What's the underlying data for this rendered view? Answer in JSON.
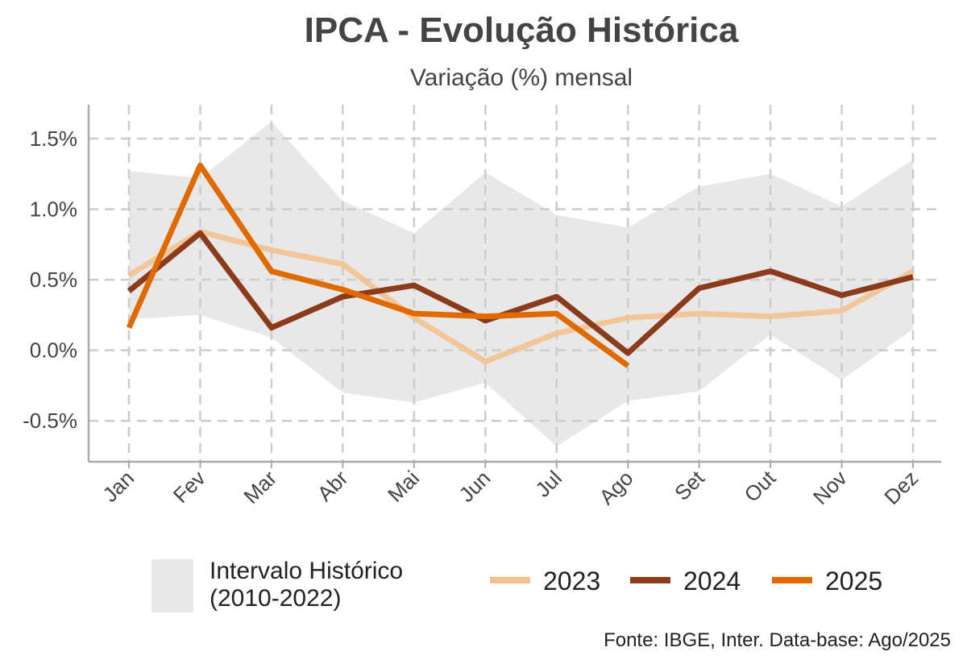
{
  "chart_data": {
    "type": "line",
    "title": "IPCA - Evolução Histórica",
    "subtitle": "Variação (%) mensal",
    "caption": "Fonte: IBGE, Inter. Data-base: Ago/2025",
    "categories": [
      "Jan",
      "Fev",
      "Mar",
      "Abr",
      "Mai",
      "Jun",
      "Jul",
      "Ago",
      "Set",
      "Out",
      "Nov",
      "Dez"
    ],
    "band": {
      "name": "Intervalo Histórico\n(2010-2022)",
      "color": "#e8e8e8",
      "upper": [
        1.27,
        1.22,
        1.62,
        1.06,
        0.83,
        1.26,
        0.96,
        0.87,
        1.16,
        1.25,
        1.02,
        1.35
      ],
      "lower": [
        0.22,
        0.25,
        0.09,
        -0.3,
        -0.37,
        -0.23,
        -0.68,
        -0.36,
        -0.29,
        0.11,
        -0.21,
        0.15
      ]
    },
    "series": [
      {
        "name": "2023",
        "color": "#f5c08c",
        "values": [
          0.53,
          0.84,
          0.71,
          0.61,
          0.23,
          -0.08,
          0.12,
          0.23,
          0.26,
          0.24,
          0.28,
          0.56
        ]
      },
      {
        "name": "2024",
        "color": "#8b3a1a",
        "values": [
          0.42,
          0.83,
          0.16,
          0.38,
          0.46,
          0.21,
          0.38,
          -0.02,
          0.44,
          0.56,
          0.39,
          0.52
        ]
      },
      {
        "name": "2025",
        "color": "#e06a00",
        "values": [
          0.16,
          1.31,
          0.56,
          0.43,
          0.26,
          0.24,
          0.26,
          -0.11,
          null,
          null,
          null,
          null
        ]
      }
    ],
    "ylim": [
      -0.79,
      1.74
    ],
    "yticks": [
      {
        "value": -0.5,
        "label": "-0.5%"
      },
      {
        "value": 0,
        "label": "0.0%"
      },
      {
        "value": 0.5,
        "label": "0.5%"
      },
      {
        "value": 1,
        "label": "1.0%"
      },
      {
        "value": 1.5,
        "label": "1.5%"
      }
    ],
    "grid": true
  }
}
